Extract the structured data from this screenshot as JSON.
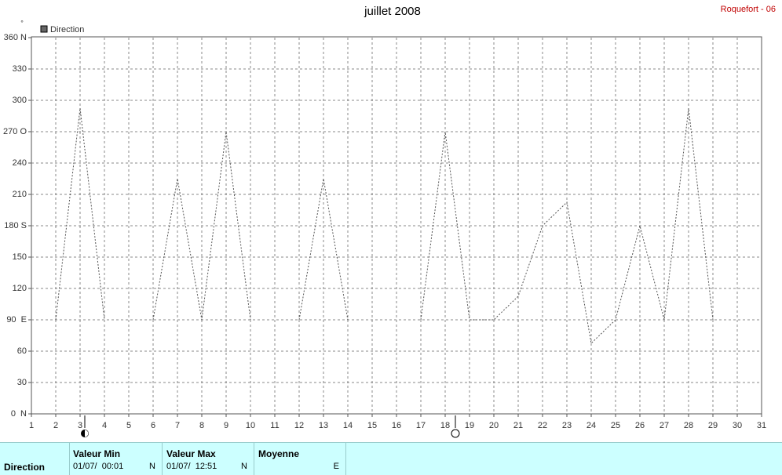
{
  "chart_data": {
    "type": "line",
    "title": "juillet 2008",
    "station": "Roquefort - 06",
    "y_unit": "°",
    "x": [
      1,
      2,
      3,
      4,
      5,
      6,
      7,
      8,
      9,
      10,
      11,
      12,
      13,
      14,
      15,
      16,
      17,
      18,
      19,
      20,
      21,
      22,
      23,
      24,
      25,
      26,
      27,
      28,
      29,
      30,
      31
    ],
    "series": [
      {
        "name": "Direction",
        "color": "#555555",
        "values": [
          null,
          90,
          292.5,
          90,
          null,
          90,
          225,
          90,
          270,
          90,
          null,
          90,
          225,
          90,
          null,
          null,
          90,
          270,
          90,
          90,
          112.5,
          180,
          202.5,
          67.5,
          90,
          180,
          90,
          292.5,
          90,
          null,
          null
        ]
      }
    ],
    "xlim": [
      1,
      31
    ],
    "xticks": [
      1,
      2,
      3,
      4,
      5,
      6,
      7,
      8,
      9,
      10,
      11,
      12,
      13,
      14,
      15,
      16,
      17,
      18,
      19,
      20,
      21,
      22,
      23,
      24,
      25,
      26,
      27,
      28,
      29,
      30,
      31
    ],
    "ylim": [
      0,
      360
    ],
    "yticks": [
      {
        "value": 0,
        "label": "0  N"
      },
      30,
      60,
      {
        "value": 90,
        "label": "90  E"
      },
      120,
      150,
      {
        "value": 180,
        "label": "180 S"
      },
      210,
      240,
      {
        "value": 270,
        "label": "270 O"
      },
      300,
      330,
      {
        "value": 360,
        "label": "360 N"
      }
    ],
    "grid": true
  },
  "summary": {
    "label": "Direction",
    "min": {
      "header": "Valeur Min",
      "date": "01/07/  00:01",
      "value": "N"
    },
    "max": {
      "header": "Valeur Max",
      "date": "01/07/  12:51",
      "value": "N"
    },
    "mean": {
      "header": "Moyenne",
      "value": "E"
    }
  }
}
